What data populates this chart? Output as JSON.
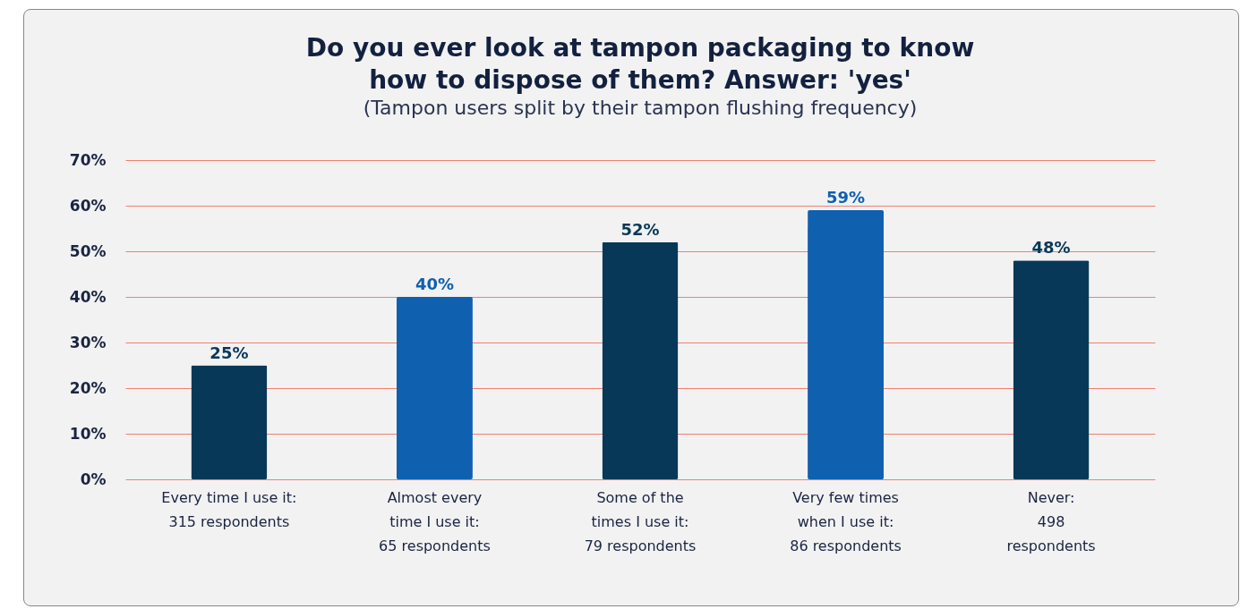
{
  "chart_data": {
    "type": "bar",
    "title": "Do you ever look at tampon packaging to know how to dispose of them? Answer: 'yes'",
    "subtitle": "(Tampon users split by their tampon flushing frequency)",
    "categories": [
      "Every time I use it:\n315 respondents",
      "Almost every\ntime I use it:\n65 respondents",
      "Some of the\ntimes I use it:\n79 respondents",
      "Very few times\nwhen I use it:\n86 respondents",
      "Never:\n498\nrespondents"
    ],
    "values": [
      25,
      40,
      52,
      59,
      48
    ],
    "value_labels": [
      "25%",
      "40%",
      "52%",
      "59%",
      "48%"
    ],
    "colors": [
      "#083858",
      "#1060b0",
      "#083858",
      "#1060b0",
      "#083858"
    ],
    "ylim": [
      0,
      70
    ],
    "yticks": [
      {
        "value": 0,
        "label": "0%"
      },
      {
        "value": 10,
        "label": "10%"
      },
      {
        "value": 20,
        "label": "20%"
      },
      {
        "value": 30,
        "label": "30%"
      },
      {
        "value": 40,
        "label": "40%"
      },
      {
        "value": 50,
        "label": "50%"
      },
      {
        "value": 60,
        "label": "60%"
      },
      {
        "value": 70,
        "label": "70%"
      }
    ],
    "grid": "y"
  }
}
